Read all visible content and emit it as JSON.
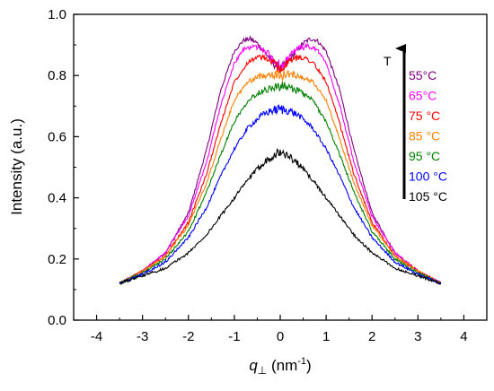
{
  "chart_data": {
    "type": "line",
    "xlabel": {
      "symbol": "q",
      "subscript": "⊥",
      "unit": " (nm",
      "exponent": "-1",
      "close": ")"
    },
    "ylabel": "Intensity (a.u.)",
    "xlim": [
      -4.5,
      4.5
    ],
    "ylim": [
      0.0,
      1.0
    ],
    "xticks": [
      -4,
      -3,
      -2,
      -1,
      0,
      1,
      2,
      3,
      4
    ],
    "xtick_labels": [
      "-4",
      "-3",
      "-2",
      "-1",
      "0",
      "1",
      "2",
      "3",
      "4"
    ],
    "yticks": [
      0.0,
      0.2,
      0.4,
      0.6,
      0.8,
      1.0
    ],
    "ytick_labels": [
      "0.0",
      "0.2",
      "0.4",
      "0.6",
      "0.8",
      "1.0"
    ],
    "grid": false,
    "legend_position": "top-right",
    "arrow_label": "T",
    "series": [
      {
        "name": "55°C",
        "color": "#800080",
        "x": [
          -3.5,
          -3.0,
          -2.5,
          -2.0,
          -1.6,
          -1.3,
          -1.0,
          -0.8,
          -0.65,
          -0.5,
          -0.3,
          -0.15,
          0.0,
          0.15,
          0.3,
          0.5,
          0.65,
          0.8,
          1.0,
          1.3,
          1.6,
          2.0,
          2.5,
          3.0,
          3.5
        ],
        "y": [
          0.12,
          0.16,
          0.22,
          0.35,
          0.56,
          0.75,
          0.88,
          0.915,
          0.92,
          0.905,
          0.87,
          0.84,
          0.82,
          0.84,
          0.87,
          0.905,
          0.92,
          0.915,
          0.88,
          0.75,
          0.56,
          0.35,
          0.22,
          0.16,
          0.12
        ]
      },
      {
        "name": "65°C",
        "color": "#ff00ff",
        "x": [
          -3.5,
          -3.0,
          -2.5,
          -2.0,
          -1.6,
          -1.3,
          -1.0,
          -0.8,
          -0.6,
          -0.4,
          -0.2,
          0.0,
          0.2,
          0.4,
          0.6,
          0.8,
          1.0,
          1.3,
          1.6,
          2.0,
          2.5,
          3.0,
          3.5
        ],
        "y": [
          0.12,
          0.16,
          0.22,
          0.34,
          0.52,
          0.7,
          0.84,
          0.885,
          0.895,
          0.89,
          0.86,
          0.83,
          0.86,
          0.89,
          0.895,
          0.885,
          0.84,
          0.7,
          0.52,
          0.34,
          0.22,
          0.16,
          0.12
        ]
      },
      {
        "name": "75 °C",
        "color": "#ff0000",
        "x": [
          -3.5,
          -3.0,
          -2.5,
          -2.0,
          -1.6,
          -1.3,
          -1.0,
          -0.7,
          -0.5,
          -0.3,
          -0.15,
          0.0,
          0.15,
          0.3,
          0.5,
          0.7,
          1.0,
          1.3,
          1.6,
          2.0,
          2.5,
          3.0,
          3.5
        ],
        "y": [
          0.12,
          0.16,
          0.21,
          0.32,
          0.48,
          0.64,
          0.78,
          0.845,
          0.86,
          0.855,
          0.84,
          0.82,
          0.84,
          0.855,
          0.86,
          0.845,
          0.78,
          0.64,
          0.48,
          0.32,
          0.21,
          0.16,
          0.12
        ]
      },
      {
        "name": "85 °C",
        "color": "#ff8000",
        "x": [
          -3.5,
          -3.0,
          -2.5,
          -2.0,
          -1.6,
          -1.3,
          -1.0,
          -0.7,
          -0.4,
          -0.2,
          0.0,
          0.2,
          0.4,
          0.7,
          1.0,
          1.3,
          1.6,
          2.0,
          2.5,
          3.0,
          3.5
        ],
        "y": [
          0.12,
          0.16,
          0.21,
          0.31,
          0.45,
          0.59,
          0.72,
          0.78,
          0.8,
          0.805,
          0.8,
          0.805,
          0.8,
          0.78,
          0.72,
          0.59,
          0.45,
          0.31,
          0.21,
          0.16,
          0.12
        ]
      },
      {
        "name": "95 °C",
        "color": "#008000",
        "x": [
          -3.5,
          -3.0,
          -2.5,
          -2.0,
          -1.6,
          -1.3,
          -1.0,
          -0.7,
          -0.4,
          -0.2,
          0.0,
          0.2,
          0.4,
          0.7,
          1.0,
          1.3,
          1.6,
          2.0,
          2.5,
          3.0,
          3.5
        ],
        "y": [
          0.12,
          0.155,
          0.2,
          0.29,
          0.42,
          0.54,
          0.65,
          0.72,
          0.75,
          0.76,
          0.765,
          0.76,
          0.75,
          0.72,
          0.65,
          0.54,
          0.42,
          0.29,
          0.2,
          0.155,
          0.12
        ]
      },
      {
        "name": "100 °C",
        "color": "#0000ff",
        "x": [
          -3.5,
          -3.0,
          -2.5,
          -2.0,
          -1.6,
          -1.3,
          -1.0,
          -0.7,
          -0.4,
          -0.2,
          0.0,
          0.2,
          0.4,
          0.7,
          1.0,
          1.3,
          1.6,
          2.0,
          2.5,
          3.0,
          3.5
        ],
        "y": [
          0.12,
          0.15,
          0.19,
          0.27,
          0.37,
          0.47,
          0.56,
          0.63,
          0.67,
          0.685,
          0.69,
          0.685,
          0.67,
          0.63,
          0.56,
          0.47,
          0.37,
          0.27,
          0.19,
          0.15,
          0.12
        ]
      },
      {
        "name": "105 °C",
        "color": "#000000",
        "x": [
          -3.5,
          -3.0,
          -2.5,
          -2.0,
          -1.6,
          -1.3,
          -1.0,
          -0.7,
          -0.4,
          -0.2,
          0.0,
          0.2,
          0.4,
          0.7,
          1.0,
          1.3,
          1.6,
          2.0,
          2.5,
          3.0,
          3.5
        ],
        "y": [
          0.12,
          0.145,
          0.17,
          0.22,
          0.28,
          0.34,
          0.4,
          0.46,
          0.51,
          0.535,
          0.55,
          0.535,
          0.51,
          0.46,
          0.4,
          0.34,
          0.28,
          0.22,
          0.17,
          0.145,
          0.12
        ]
      }
    ]
  }
}
